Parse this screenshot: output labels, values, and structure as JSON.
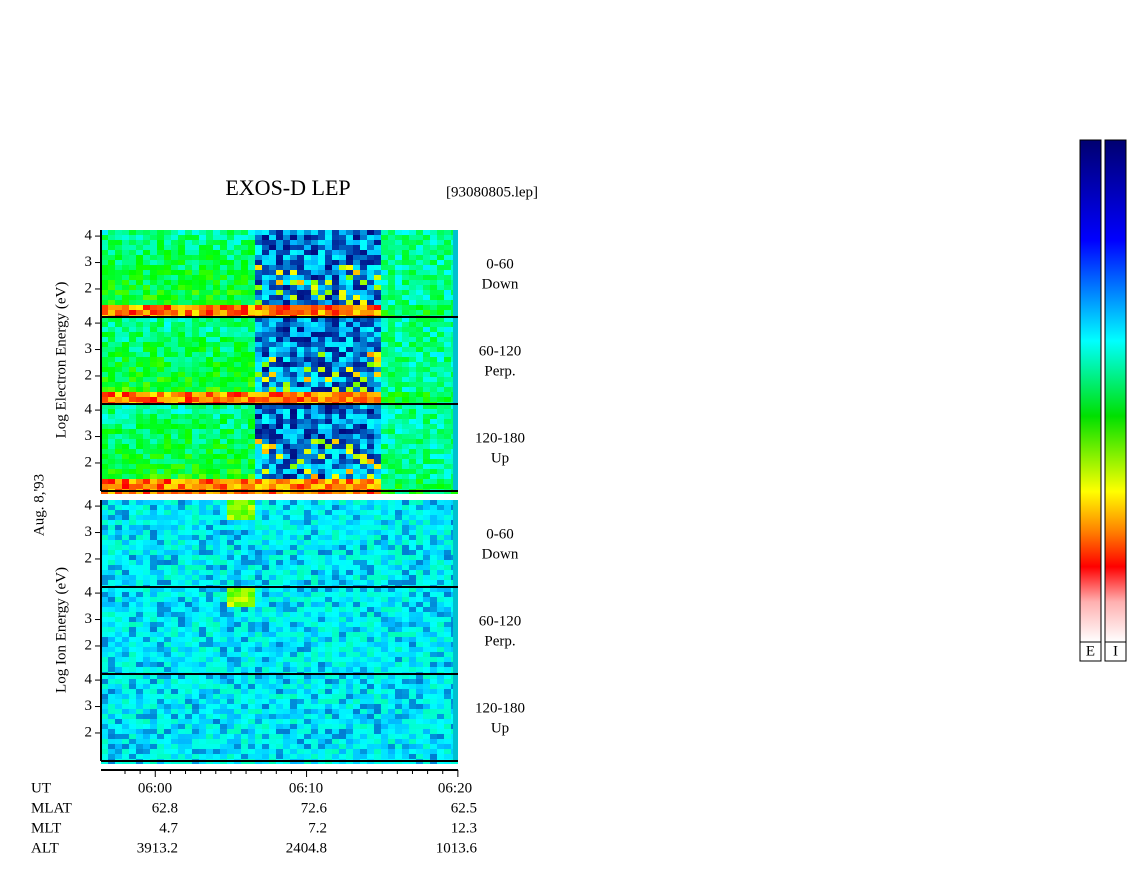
{
  "header": {
    "title": "EXOS-D LEP",
    "file": "[93080805.lep]"
  },
  "date": "Aug. 8,'93",
  "groups": [
    {
      "ylabel": "Log  Electron  Energy  (eV)",
      "panels": [
        {
          "channel": [
            "0-60",
            "Down"
          ],
          "yticks": [
            2,
            3,
            4
          ],
          "ylim": [
            0.94,
            4.23
          ]
        },
        {
          "channel": [
            "60-120",
            "Perp."
          ],
          "yticks": [
            2,
            3,
            4
          ],
          "ylim": [
            0.94,
            4.23
          ]
        },
        {
          "channel": [
            "120-180",
            "Up"
          ],
          "yticks": [
            2,
            3,
            4
          ],
          "ylim": [
            0.94,
            4.23
          ]
        }
      ]
    },
    {
      "ylabel": "Log  Ion  Energy  (eV)",
      "panels": [
        {
          "channel": [
            "0-60",
            "Down"
          ],
          "yticks": [
            2,
            3,
            4
          ],
          "ylim": [
            0.94,
            4.23
          ]
        },
        {
          "channel": [
            "60-120",
            "Perp."
          ],
          "yticks": [
            2,
            3,
            4
          ],
          "ylim": [
            0.94,
            4.23
          ]
        },
        {
          "channel": [
            "120-180",
            "Up"
          ],
          "yticks": [
            2,
            3,
            4
          ],
          "ylim": [
            0.94,
            4.23
          ]
        }
      ]
    }
  ],
  "time_table": {
    "rows": [
      [
        "UT",
        "06:00",
        "06:10",
        "06:20"
      ],
      [
        "MLAT",
        "62.8",
        "72.6",
        "62.5"
      ],
      [
        "MLT",
        "4.7",
        "7.2",
        "12.3"
      ],
      [
        "ALT",
        "3913.2",
        "2404.8",
        "1013.6"
      ]
    ]
  },
  "colorbars": [
    "E",
    "I"
  ]
}
